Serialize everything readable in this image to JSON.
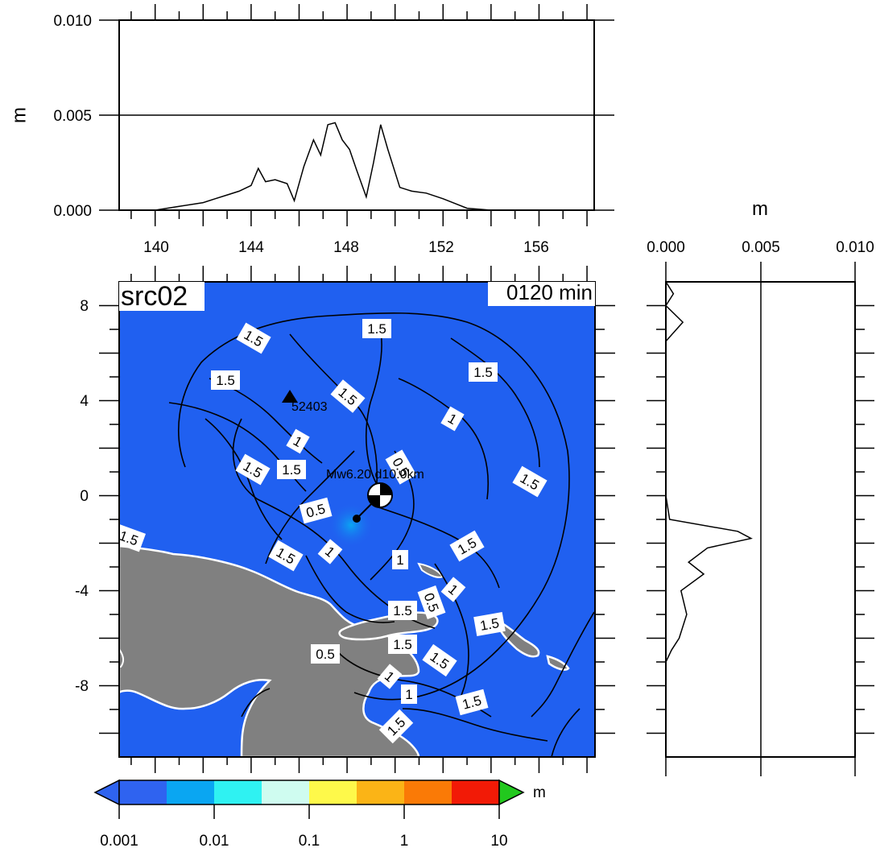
{
  "map": {
    "source_label": "src02",
    "time_label": "0120 min",
    "station_label": "52403",
    "event_label": "Mw6.20 d10.0km",
    "lat_ticks": [
      "8",
      "4",
      "0",
      "-4",
      "-8"
    ],
    "lon_ticks": [
      "140",
      "144",
      "148",
      "152",
      "156"
    ],
    "contour_labels": [
      "1.5",
      "1.5",
      "1.5",
      "1.5",
      "1.5",
      "1",
      "1",
      "1.5",
      "1.5",
      "0.5",
      "0.5",
      "1.5",
      "1.5",
      "1.5",
      "1",
      "1",
      "1.5",
      "1.5",
      "0.5",
      "1.5",
      "1",
      "0.5",
      "1",
      "1",
      "1.5",
      "1.5",
      "1.5",
      "1.5"
    ],
    "colors": {
      "ocean": "#2060f0",
      "land": "#808080",
      "coast": "#ffffff",
      "contour": "#000000"
    }
  },
  "top_profile": {
    "unit": "m",
    "y_ticks": [
      "0.010",
      "0.005",
      "0.000"
    ],
    "x_ticks": [
      "140",
      "144",
      "148",
      "152",
      "156"
    ]
  },
  "right_profile": {
    "unit": "m",
    "x_ticks": [
      "0.000",
      "0.005",
      "0.010"
    ]
  },
  "colorbar": {
    "unit": "m",
    "ticks": [
      "0.001",
      "0.01",
      "0.1",
      "1",
      "10"
    ],
    "colors": [
      "#2f63f0",
      "#0aa6f2",
      "#2ff2f2",
      "#cffcf0",
      "#fef94a",
      "#fbb416",
      "#fa7a06",
      "#f21a06",
      "#22c81e"
    ]
  },
  "chart_data": {
    "type": "line",
    "series": [
      {
        "x": [
          138.5,
          140,
          141,
          142,
          142.5,
          143,
          143.5,
          144,
          144.3,
          144.6,
          145,
          145.5,
          145.8,
          146.2,
          146.6,
          146.9,
          147.2,
          147.5,
          147.8,
          148.1,
          148.4,
          148.8,
          149.1,
          149.4,
          149.7,
          150.2,
          150.7,
          151.3,
          152,
          153,
          154,
          156,
          158.3
        ],
        "y": [
          0.0,
          0.0,
          0.0002,
          0.0004,
          0.0006,
          0.0008,
          0.001,
          0.0013,
          0.0022,
          0.0015,
          0.0016,
          0.0014,
          0.0005,
          0.0023,
          0.0037,
          0.0029,
          0.0045,
          0.0046,
          0.0037,
          0.0032,
          0.0021,
          0.0007,
          0.0025,
          0.0045,
          0.0032,
          0.0012,
          0.001,
          0.0009,
          0.0006,
          0.0001,
          0.0,
          0.0,
          0.0
        ]
      },
      {
        "lat": [
          9,
          8.5,
          8,
          7.3,
          6.5,
          4,
          2,
          0,
          -1,
          -1.5,
          -1.8,
          -2.2,
          -2.8,
          -3.3,
          -4,
          -5,
          -6,
          -6.5,
          -7,
          -8,
          -9,
          -10,
          -11
        ],
        "y": [
          0.0,
          0.0004,
          0.0,
          0.0009,
          0.0,
          0.0,
          0.0,
          0.0,
          0.0002,
          0.0038,
          0.0045,
          0.0022,
          0.0012,
          0.002,
          0.0008,
          0.0011,
          0.0007,
          0.0003,
          0.0,
          0.0,
          0.0,
          0.0,
          0.0
        ]
      }
    ],
    "ylim": [
      0,
      0.01
    ],
    "xlim": [
      138.5,
      158.3
    ],
    "latlim": [
      -11,
      9
    ]
  }
}
